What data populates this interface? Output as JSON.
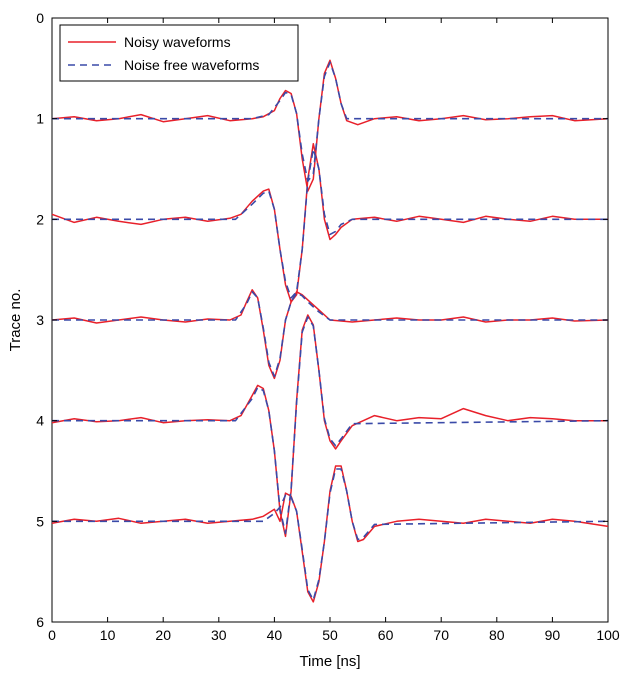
{
  "chart_data": {
    "type": "line",
    "xlabel": "Time [ns]",
    "ylabel": "Trace no.",
    "xlim": [
      0,
      100
    ],
    "ylim": [
      0,
      6
    ],
    "y_inverted": true,
    "x_ticks": [
      0,
      10,
      20,
      30,
      40,
      50,
      60,
      70,
      80,
      90,
      100
    ],
    "y_ticks": [
      0,
      1,
      2,
      3,
      4,
      5,
      6
    ],
    "grid": false,
    "legend_position": "top-left",
    "series": [
      {
        "name": "Noisy waveforms",
        "color": "#e8202a",
        "style": "solid",
        "traces": [
          {
            "baseline": 1,
            "x": [
              0,
              4,
              8,
              12,
              16,
              20,
              24,
              28,
              32,
              36,
              38,
              40,
              41,
              42,
              43,
              44,
              45,
              46,
              47,
              48,
              49,
              50,
              51,
              52,
              53,
              55,
              58,
              62,
              66,
              70,
              74,
              78,
              82,
              86,
              90,
              94,
              100
            ],
            "y": [
              1.0,
              0.98,
              1.02,
              1.0,
              0.96,
              1.03,
              1.0,
              0.97,
              1.02,
              1.0,
              0.98,
              0.92,
              0.8,
              0.72,
              0.75,
              0.95,
              1.4,
              1.72,
              1.6,
              1.0,
              0.55,
              0.42,
              0.6,
              0.85,
              1.02,
              1.06,
              1.0,
              0.98,
              1.02,
              1.0,
              0.97,
              1.01,
              1.0,
              0.98,
              0.97,
              1.02,
              1.0
            ]
          },
          {
            "baseline": 2,
            "x": [
              0,
              4,
              8,
              12,
              16,
              20,
              24,
              28,
              32,
              34,
              36,
              38,
              39,
              40,
              41,
              42,
              43,
              44,
              45,
              46,
              47,
              48,
              49,
              50,
              51,
              52,
              54,
              58,
              62,
              66,
              70,
              74,
              78,
              82,
              86,
              90,
              94,
              100
            ],
            "y": [
              1.95,
              2.03,
              1.98,
              2.02,
              2.05,
              2.0,
              1.98,
              2.02,
              1.99,
              1.95,
              1.82,
              1.72,
              1.7,
              1.9,
              2.3,
              2.65,
              2.82,
              2.75,
              2.3,
              1.6,
              1.25,
              1.5,
              2.0,
              2.2,
              2.15,
              2.08,
              2.0,
              1.98,
              2.02,
              1.97,
              2.0,
              2.03,
              1.97,
              2.0,
              2.02,
              1.97,
              2.0,
              2.0
            ]
          },
          {
            "baseline": 3,
            "x": [
              0,
              4,
              8,
              12,
              16,
              20,
              24,
              28,
              32,
              34,
              35,
              36,
              37,
              38,
              39,
              40,
              41,
              42,
              43,
              44,
              45,
              46,
              48,
              50,
              54,
              58,
              62,
              66,
              70,
              74,
              78,
              82,
              86,
              90,
              94,
              100
            ],
            "y": [
              3.0,
              2.98,
              3.03,
              3.0,
              2.97,
              3.0,
              3.02,
              2.99,
              3.0,
              2.95,
              2.82,
              2.7,
              2.78,
              3.1,
              3.45,
              3.58,
              3.4,
              3.0,
              2.82,
              2.72,
              2.75,
              2.8,
              2.9,
              3.0,
              3.02,
              3.0,
              2.98,
              3.0,
              3.0,
              2.97,
              3.02,
              3.0,
              3.0,
              2.98,
              3.01,
              3.0
            ]
          },
          {
            "baseline": 4,
            "x": [
              0,
              4,
              8,
              12,
              16,
              20,
              24,
              28,
              32,
              34,
              36,
              37,
              38,
              39,
              40,
              41,
              42,
              43,
              44,
              45,
              46,
              47,
              48,
              49,
              50,
              51,
              52,
              54,
              58,
              62,
              66,
              70,
              74,
              78,
              82,
              86,
              90,
              94,
              100
            ],
            "y": [
              4.02,
              3.98,
              4.01,
              4.0,
              3.97,
              4.02,
              4.0,
              3.99,
              4.0,
              3.95,
              3.75,
              3.65,
              3.68,
              3.9,
              4.3,
              4.9,
              5.15,
              4.7,
              3.8,
              3.1,
              2.95,
              3.05,
              3.5,
              4.0,
              4.2,
              4.28,
              4.2,
              4.05,
              3.95,
              4.0,
              3.97,
              3.98,
              3.88,
              3.95,
              4.0,
              3.97,
              3.98,
              4.0,
              4.0
            ]
          },
          {
            "baseline": 5,
            "x": [
              0,
              4,
              8,
              12,
              16,
              20,
              24,
              28,
              32,
              36,
              38,
              40,
              41,
              42,
              43,
              44,
              45,
              46,
              47,
              48,
              49,
              50,
              51,
              52,
              53,
              54,
              55,
              56,
              58,
              62,
              66,
              70,
              74,
              78,
              82,
              86,
              90,
              94,
              100
            ],
            "y": [
              5.02,
              4.98,
              5.0,
              4.97,
              5.02,
              5.0,
              4.98,
              5.02,
              5.0,
              4.98,
              4.95,
              4.88,
              5.0,
              4.72,
              4.75,
              4.9,
              5.3,
              5.7,
              5.8,
              5.6,
              5.2,
              4.7,
              4.45,
              4.45,
              4.7,
              5.0,
              5.2,
              5.18,
              5.05,
              5.0,
              4.98,
              5.0,
              5.02,
              4.98,
              5.0,
              5.02,
              4.98,
              5.0,
              5.05
            ]
          }
        ]
      },
      {
        "name": "Noise free waveforms",
        "color": "#3a4aa8",
        "style": "dashed",
        "traces": [
          {
            "baseline": 1,
            "x": [
              0,
              36,
              39,
              41,
              42,
              43,
              44,
              45,
              46,
              47,
              48,
              49,
              50,
              51,
              52,
              53,
              55,
              100
            ],
            "y": [
              1.0,
              1.0,
              0.96,
              0.82,
              0.74,
              0.76,
              0.95,
              1.35,
              1.62,
              1.55,
              1.0,
              0.58,
              0.44,
              0.6,
              0.85,
              1.0,
              1.0,
              1.0
            ]
          },
          {
            "baseline": 2,
            "x": [
              0,
              33,
              36,
              38,
              39,
              40,
              41,
              42,
              43,
              44,
              45,
              46,
              47,
              48,
              49,
              50,
              51,
              52,
              54,
              100
            ],
            "y": [
              2.0,
              2.0,
              1.85,
              1.74,
              1.72,
              1.9,
              2.3,
              2.62,
              2.78,
              2.72,
              2.3,
              1.62,
              1.3,
              1.5,
              1.95,
              2.15,
              2.12,
              2.05,
              2.0,
              2.0
            ]
          },
          {
            "baseline": 3,
            "x": [
              0,
              33,
              35,
              36,
              37,
              38,
              39,
              40,
              41,
              42,
              43,
              44,
              45,
              46,
              48,
              50,
              100
            ],
            "y": [
              3.0,
              3.0,
              2.84,
              2.72,
              2.78,
              3.08,
              3.42,
              3.56,
              3.38,
              3.0,
              2.82,
              2.73,
              2.76,
              2.82,
              2.92,
              3.0,
              3.0
            ]
          },
          {
            "baseline": 4,
            "x": [
              0,
              33,
              36,
              37,
              38,
              39,
              40,
              41,
              42,
              43,
              44,
              45,
              46,
              47,
              48,
              49,
              50,
              51,
              52,
              54,
              100
            ],
            "y": [
              4.0,
              4.0,
              3.78,
              3.67,
              3.7,
              3.9,
              4.3,
              4.88,
              5.12,
              4.68,
              3.82,
              3.12,
              2.97,
              3.06,
              3.5,
              3.98,
              4.18,
              4.25,
              4.18,
              4.03,
              4.0
            ]
          },
          {
            "baseline": 5,
            "x": [
              0,
              38,
              40,
              41,
              42,
              43,
              44,
              45,
              46,
              47,
              48,
              49,
              50,
              51,
              52,
              53,
              54,
              55,
              56,
              58,
              100
            ],
            "y": [
              5.0,
              5.0,
              4.92,
              4.86,
              4.74,
              4.76,
              4.9,
              5.28,
              5.68,
              5.78,
              5.58,
              5.2,
              4.72,
              4.48,
              4.48,
              4.7,
              5.0,
              5.18,
              5.16,
              5.03,
              5.0
            ]
          }
        ]
      }
    ]
  }
}
